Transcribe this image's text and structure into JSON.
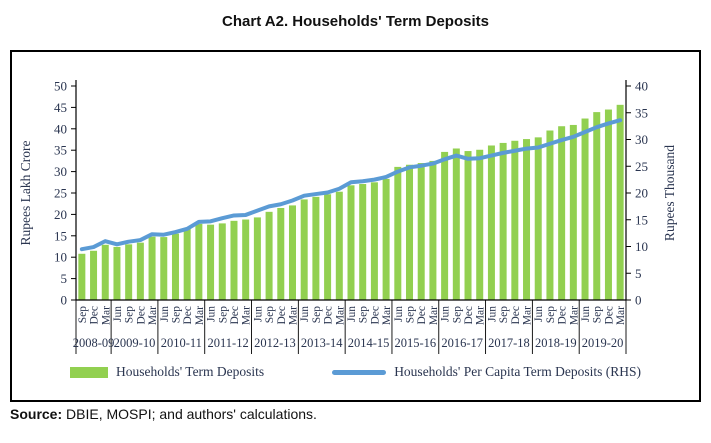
{
  "source": {
    "label": "Source:",
    "text": " DBIE, MOSPI; and authors' calculations."
  },
  "chart_data": {
    "type": "bar",
    "title": "Chart A2. Households' Term Deposits",
    "grid": false,
    "legend_position": "bottom",
    "axis_text_color": "#2a3550",
    "axis_line_color": "#000000",
    "left_axis": {
      "label": "Rupees Lakh Crore",
      "min": 0,
      "max": 50,
      "step": 5
    },
    "right_axis": {
      "label": "Rupees Thousand",
      "min": 0,
      "max": 40,
      "step": 5
    },
    "year_groups": [
      {
        "year": "2008-09",
        "quarters": [
          "Sep",
          "Dec",
          "Mar"
        ]
      },
      {
        "year": "2009-10",
        "quarters": [
          "Jun",
          "Sep",
          "Dec",
          "Mar"
        ]
      },
      {
        "year": "2010-11",
        "quarters": [
          "Jun",
          "Sep",
          "Dec",
          "Mar"
        ]
      },
      {
        "year": "2011-12",
        "quarters": [
          "Jun",
          "Sep",
          "Dec",
          "Mar"
        ]
      },
      {
        "year": "2012-13",
        "quarters": [
          "Jun",
          "Sep",
          "Dec",
          "Mar"
        ]
      },
      {
        "year": "2013-14",
        "quarters": [
          "Jun",
          "Sep",
          "Dec",
          "Mar"
        ]
      },
      {
        "year": "2014-15",
        "quarters": [
          "Jun",
          "Sep",
          "Dec",
          "Mar"
        ]
      },
      {
        "year": "2015-16",
        "quarters": [
          "Jun",
          "Sep",
          "Dec",
          "Mar"
        ]
      },
      {
        "year": "2016-17",
        "quarters": [
          "Jun",
          "Sep",
          "Dec",
          "Mar"
        ]
      },
      {
        "year": "2017-18",
        "quarters": [
          "Jun",
          "Sep",
          "Dec",
          "Mar"
        ]
      },
      {
        "year": "2018-19",
        "quarters": [
          "Jun",
          "Sep",
          "Dec",
          "Mar"
        ]
      },
      {
        "year": "2019-20",
        "quarters": [
          "Jun",
          "Sep",
          "Dec",
          "Mar"
        ]
      }
    ],
    "series": [
      {
        "name": "Households' Term Deposits",
        "type": "bar",
        "axis": "left",
        "color": "#92D050",
        "values": [
          10.8,
          11.5,
          12.9,
          12.4,
          13.0,
          13.4,
          14.8,
          14.7,
          15.5,
          16.6,
          17.8,
          17.6,
          17.9,
          18.5,
          18.8,
          19.3,
          20.6,
          21.5,
          22.1,
          23.5,
          24.1,
          24.7,
          25.3,
          26.8,
          27.1,
          27.5,
          28.3,
          31.1,
          31.6,
          32.0,
          32.5,
          34.6,
          35.4,
          34.8,
          35.1,
          36.1,
          36.7,
          37.2,
          37.6,
          38.0,
          39.6,
          40.6,
          40.9,
          42.4,
          43.9,
          44.5,
          45.6
        ]
      },
      {
        "name": "Households' Per Capita Term Deposits (RHS)",
        "type": "line",
        "axis": "right",
        "color": "#5B9BD5",
        "values": [
          9.5,
          9.9,
          11.0,
          10.4,
          10.9,
          11.2,
          12.3,
          12.2,
          12.7,
          13.3,
          14.6,
          14.7,
          15.3,
          15.8,
          15.9,
          16.7,
          17.5,
          17.9,
          18.6,
          19.5,
          19.8,
          20.1,
          20.8,
          22.0,
          22.2,
          22.5,
          23.0,
          24.0,
          24.8,
          25.1,
          25.5,
          26.3,
          27.0,
          26.4,
          26.5,
          27.0,
          27.5,
          27.9,
          28.3,
          28.5,
          29.2,
          29.9,
          30.5,
          31.4,
          32.3,
          33.0,
          33.6
        ]
      }
    ]
  }
}
